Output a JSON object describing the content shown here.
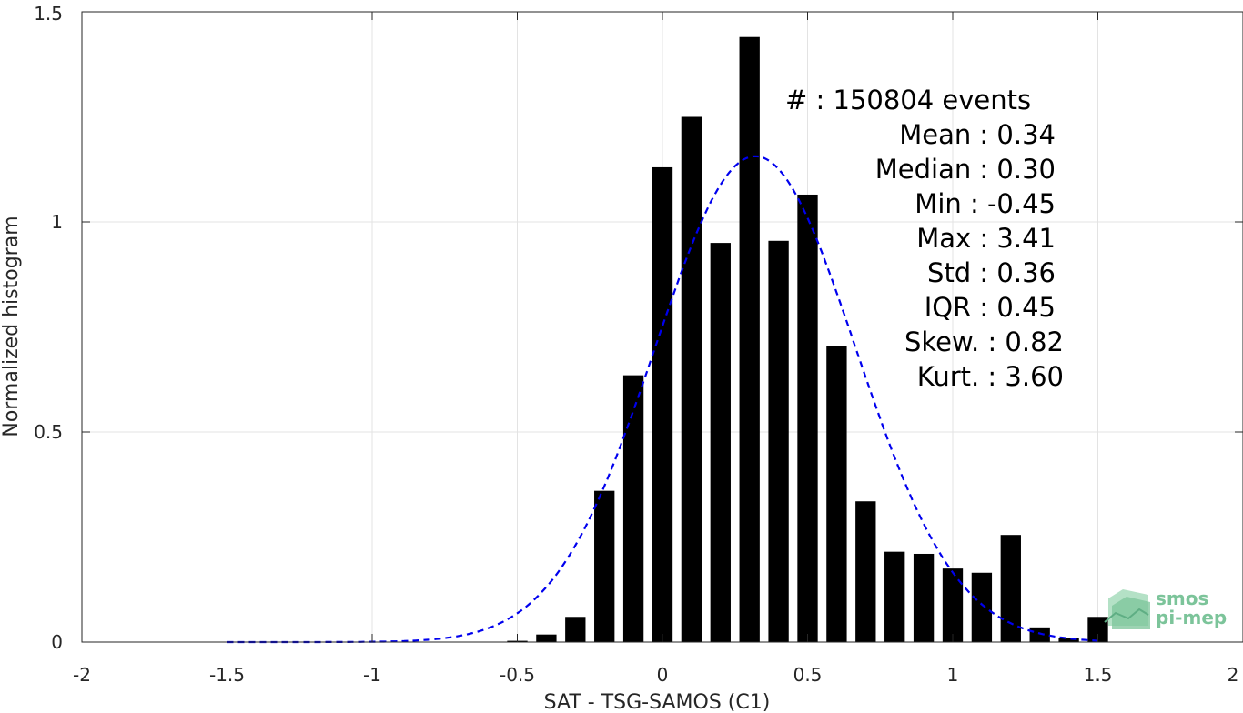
{
  "chart_data": {
    "type": "bar",
    "xlabel": "SAT - TSG-SAMOS (C1)",
    "ylabel": "Normalized histogram",
    "xlim": [
      -2,
      2
    ],
    "ylim": [
      0,
      1.5
    ],
    "xticks": [
      -2,
      -1.5,
      -1,
      -0.5,
      0,
      0.5,
      1,
      1.5,
      2
    ],
    "xtick_labels": [
      "-2",
      "-1.5",
      "-1",
      "-0.5",
      "0",
      "0.5",
      "1",
      "1.5",
      "2"
    ],
    "yticks": [
      0,
      0.5,
      1,
      1.5
    ],
    "ytick_labels": [
      "0",
      "0.5",
      "1",
      "1.5"
    ],
    "grid": true,
    "bar_color": "#000000",
    "bars": {
      "x": [
        -0.5,
        -0.4,
        -0.3,
        -0.2,
        -0.1,
        0.0,
        0.1,
        0.2,
        0.3,
        0.4,
        0.5,
        0.6,
        0.7,
        0.8,
        0.9,
        1.0,
        1.1,
        1.2,
        1.3,
        1.4,
        1.5
      ],
      "values": [
        0.003,
        0.018,
        0.06,
        0.36,
        0.635,
        1.13,
        1.25,
        0.95,
        1.44,
        0.955,
        1.065,
        0.705,
        0.335,
        0.215,
        0.21,
        0.175,
        0.165,
        0.255,
        0.035,
        0.01,
        0.06
      ],
      "width": 0.07
    },
    "fit_curve": {
      "style": "dashed",
      "color": "#0000ee",
      "mean": 0.32,
      "std": 0.345,
      "x_range": [
        -1.5,
        1.5
      ]
    },
    "stats": [
      "#  : 150804 events",
      "Mean : 0.34",
      "Median : 0.30",
      "Min : -0.45",
      "Max : 3.41",
      "Std : 0.36",
      "IQR : 0.45",
      "Skew. : 0.82",
      "Kurt. : 3.60"
    ]
  },
  "logo": {
    "line1": "smos",
    "line2": "pi-mep",
    "color": "#7cc49a"
  }
}
